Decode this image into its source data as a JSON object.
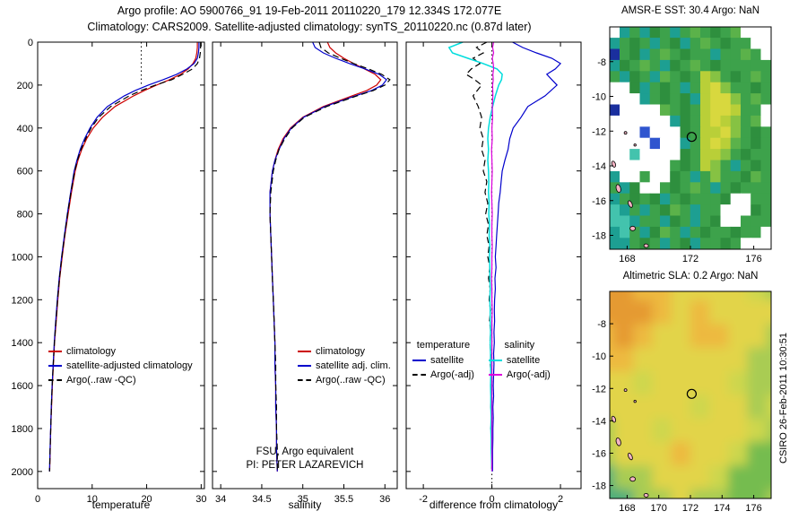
{
  "header": {
    "line1": "Argo profile: AO 5900766_91 19-Feb-2011 20110220_179 12.334S 172.077E",
    "line2": "Climatology: CARS2009. Satellite-adjusted climatology: synTS_20110220.nc (0.87d later)"
  },
  "notes": {
    "line1": "FSU, Argo equivalent",
    "line2": "PI: PETER LAZAREVICH"
  },
  "credit": {
    "text": "CSIRO 26-Feb-2011 10:30:51"
  },
  "colors": {
    "climatology": "#cc0000",
    "satellite": "#0000cc",
    "argo": "#000000",
    "sal_satellite": "#00dddd",
    "sal_argo": "#dd00dd",
    "frame": "#000000"
  },
  "chart_data": [
    {
      "type": "line",
      "panel": "temperature",
      "xlabel": "temperature",
      "ylabel": "",
      "xlim": [
        0,
        30.6
      ],
      "ylim": [
        0,
        2080
      ],
      "x_ticks": [
        0,
        10,
        20,
        30
      ],
      "y_ticks": [
        0,
        200,
        400,
        600,
        800,
        1000,
        1200,
        1400,
        1600,
        1800,
        2000
      ],
      "guide_line": {
        "x": 19,
        "depth_from": 0,
        "depth_to": 195
      },
      "depths": [
        0,
        25,
        50,
        75,
        100,
        125,
        150,
        175,
        200,
        225,
        250,
        300,
        350,
        400,
        450,
        500,
        550,
        600,
        700,
        800,
        900,
        1000,
        1100,
        1200,
        1300,
        1400,
        1500,
        1600,
        1700,
        1800,
        1900,
        2000
      ],
      "series": [
        {
          "name": "climatology",
          "color_key": "climatology",
          "dash": false,
          "values": [
            29.3,
            29.3,
            29.2,
            29.0,
            28.5,
            27.6,
            26.2,
            24.2,
            21.8,
            19.6,
            17.6,
            14.2,
            11.9,
            10.2,
            9.0,
            8.1,
            7.4,
            6.9,
            6.2,
            5.6,
            5.0,
            4.5,
            4.05,
            3.7,
            3.4,
            3.1,
            2.9,
            2.7,
            2.55,
            2.4,
            2.3,
            2.2
          ]
        },
        {
          "name": "satellite-adjusted climatology",
          "color_key": "satellite",
          "dash": false,
          "values": [
            29.6,
            29.6,
            29.5,
            29.3,
            28.7,
            27.4,
            25.5,
            23.0,
            20.3,
            17.9,
            15.9,
            12.8,
            10.9,
            9.6,
            8.6,
            7.8,
            7.2,
            6.7,
            6.05,
            5.45,
            4.9,
            4.4,
            3.95,
            3.6,
            3.3,
            3.05,
            2.85,
            2.65,
            2.5,
            2.38,
            2.27,
            2.17
          ]
        },
        {
          "name": "Argo(..raw -QC)",
          "color_key": "argo",
          "dash": true,
          "values": [
            29.9,
            29.9,
            29.85,
            29.7,
            29.3,
            28.4,
            26.6,
            24.6,
            21.6,
            19.0,
            16.8,
            13.4,
            11.2,
            9.8,
            8.8,
            7.95,
            7.3,
            6.8,
            6.1,
            5.5,
            4.95,
            4.45,
            4.0,
            3.65,
            3.35,
            3.08,
            2.87,
            2.67,
            2.52,
            2.4,
            2.28,
            2.18
          ]
        }
      ]
    },
    {
      "type": "line",
      "panel": "salinity",
      "xlabel": "salinity",
      "ylabel": "",
      "xlim": [
        33.9,
        36.15
      ],
      "ylim": [
        0,
        2080
      ],
      "x_ticks": [
        34,
        34.5,
        35,
        35.5,
        36
      ],
      "y_ticks": [
        0,
        200,
        400,
        600,
        800,
        1000,
        1200,
        1400,
        1600,
        1800,
        2000
      ],
      "depths": [
        0,
        25,
        50,
        75,
        100,
        125,
        150,
        175,
        200,
        225,
        250,
        300,
        350,
        400,
        450,
        500,
        550,
        600,
        700,
        800,
        900,
        1000,
        1100,
        1200,
        1300,
        1400,
        1500,
        1600,
        1700,
        1800,
        1900,
        2000
      ],
      "series": [
        {
          "name": "climatology",
          "color_key": "climatology",
          "dash": false,
          "values": [
            35.3,
            35.33,
            35.4,
            35.5,
            35.62,
            35.75,
            35.88,
            35.95,
            35.9,
            35.78,
            35.6,
            35.25,
            35.0,
            34.85,
            34.76,
            34.7,
            34.66,
            34.63,
            34.6,
            34.6,
            34.61,
            34.62,
            34.63,
            34.64,
            34.65,
            34.66,
            34.66,
            34.67,
            34.67,
            34.68,
            34.68,
            34.69
          ]
        },
        {
          "name": "satellite adj. clim.",
          "color_key": "satellite",
          "dash": false,
          "values": [
            35.12,
            35.15,
            35.25,
            35.4,
            35.57,
            35.76,
            35.93,
            36.02,
            35.97,
            35.84,
            35.64,
            35.27,
            35.01,
            34.86,
            34.77,
            34.71,
            34.66,
            34.63,
            34.6,
            34.6,
            34.61,
            34.62,
            34.63,
            34.64,
            34.65,
            34.66,
            34.66,
            34.67,
            34.67,
            34.68,
            34.68,
            34.69
          ]
        },
        {
          "name": "Argo(..raw -QC)",
          "color_key": "argo",
          "dash": true,
          "values": [
            35.2,
            35.22,
            35.31,
            35.46,
            35.62,
            35.8,
            35.96,
            36.06,
            36.0,
            35.86,
            35.66,
            35.29,
            35.02,
            34.87,
            34.78,
            34.71,
            34.67,
            34.64,
            34.61,
            34.6,
            34.61,
            34.62,
            34.63,
            34.64,
            34.65,
            34.66,
            34.67,
            34.67,
            34.68,
            34.68,
            34.69,
            34.69
          ]
        }
      ]
    },
    {
      "type": "line",
      "panel": "difference",
      "xlabel": "difference from climatology",
      "ylabel": "",
      "xlim": [
        -2.5,
        2.6
      ],
      "ylim": [
        0,
        2080
      ],
      "x_ticks": [
        -2,
        0,
        2
      ],
      "y_ticks": [
        0,
        200,
        400,
        600,
        800,
        1000,
        1200,
        1400,
        1600,
        1800,
        2000
      ],
      "guide_line": {
        "x": 0,
        "depth_from": 0,
        "depth_to": 2080
      },
      "legend_headers": [
        "temperature",
        "salinity"
      ],
      "depths": [
        0,
        25,
        50,
        75,
        100,
        125,
        150,
        175,
        200,
        250,
        300,
        350,
        400,
        450,
        500,
        550,
        600,
        650,
        700,
        750,
        800,
        850,
        900,
        950,
        1000,
        1050,
        1100,
        1150,
        1200,
        1250,
        1300,
        1350,
        1400,
        1450,
        1500,
        1550,
        1600,
        1650,
        1700,
        1750,
        1800,
        1850,
        1900,
        1950,
        2000
      ],
      "series": [
        {
          "name": "satellite",
          "color_key": "satellite",
          "dash": false,
          "values": [
            0.6,
            0.9,
            1.3,
            1.75,
            2.0,
            1.85,
            1.6,
            1.75,
            1.9,
            1.55,
            1.05,
            0.85,
            0.62,
            0.52,
            0.47,
            0.38,
            0.3,
            0.27,
            0.24,
            0.2,
            0.18,
            0.16,
            0.14,
            0.12,
            0.1,
            0.12,
            0.09,
            0.1,
            0.08,
            0.07,
            0.08,
            0.06,
            0.07,
            0.05,
            0.06,
            0.05,
            0.04,
            0.05,
            0.03,
            0.04,
            0.03,
            0.03,
            0.02,
            0.02,
            0.02
          ]
        },
        {
          "name": "Argo(-adj)",
          "color_key": "argo",
          "dash": true,
          "values": [
            -0.15,
            -0.45,
            -0.25,
            -0.55,
            -0.35,
            -0.6,
            -0.75,
            -0.5,
            -0.3,
            -0.55,
            -0.4,
            -0.3,
            -0.35,
            -0.25,
            -0.3,
            -0.2,
            -0.25,
            -0.15,
            -0.2,
            -0.12,
            -0.18,
            -0.1,
            -0.15,
            -0.08,
            -0.12,
            -0.06,
            -0.1,
            -0.05,
            -0.08,
            -0.04,
            -0.07,
            -0.03,
            -0.06,
            -0.03,
            -0.05,
            -0.02,
            -0.04,
            -0.02,
            -0.03,
            -0.01,
            -0.03,
            -0.01,
            -0.02,
            0.0,
            -0.01
          ]
        },
        {
          "name": "satellite",
          "color_key": "sal_satellite",
          "dash": false,
          "values": [
            -0.85,
            -1.25,
            -1.15,
            -0.7,
            -0.25,
            0.15,
            0.3,
            0.28,
            0.2,
            0.1,
            0.02,
            -0.05,
            -0.1,
            -0.12,
            -0.1,
            -0.12,
            -0.1,
            -0.09,
            -0.1,
            -0.08,
            -0.09,
            -0.07,
            -0.08,
            -0.06,
            -0.07,
            -0.06,
            -0.06,
            -0.05,
            -0.06,
            -0.05,
            -0.05,
            -0.04,
            -0.05,
            -0.04,
            -0.04,
            -0.03,
            -0.04,
            -0.03,
            -0.03,
            -0.02,
            -0.03,
            -0.02,
            -0.02,
            -0.01,
            0.0
          ]
        },
        {
          "name": "Argo(-adj)",
          "color_key": "sal_argo",
          "dash": false,
          "values": [
            0.05,
            0.02,
            0.05,
            0.01,
            0.04,
            0.05,
            0.03,
            0.04,
            0.02,
            0.03,
            0.01,
            0.02,
            0.0,
            0.01,
            -0.01,
            0.0,
            0.01,
            0.0,
            -0.01,
            0.0,
            0.01,
            0.0,
            0.0,
            0.01,
            0.0,
            0.0,
            -0.01,
            0.0,
            0.0,
            0.01,
            0.0,
            0.0,
            0.0,
            0.0,
            0.0,
            0.0,
            0.0,
            0.0,
            0.0,
            0.0,
            0.0,
            0.0,
            0.0,
            0.0,
            0.0
          ]
        }
      ]
    }
  ],
  "maps": {
    "sst": {
      "title": "AMSR-E SST: 30.4 Argo: NaN",
      "x_ticks": [
        168,
        172,
        176
      ],
      "y_ticks": [
        -8,
        -10,
        -12,
        -14,
        -16,
        -18
      ],
      "lon_range": [
        166.9,
        177.1
      ],
      "lat_range": [
        -6.0,
        -18.8
      ],
      "smooth": false,
      "land_color": "#f2b2c2",
      "argo": {
        "lon": 172.077,
        "lat": -12.334
      },
      "palette": {
        "w": "#ffffff",
        "g": "#3da24b",
        "d": "#2e8f3e",
        "e": "#5bb24a",
        "f": "#86c243",
        "y": "#b9cf38",
        "o": "#d8d83e",
        "t": "#1d9f92",
        "c": "#43c3ad",
        "b": "#2f55cf",
        "n": "#1a2f9e"
      },
      "grid": [
        "wtgtdgtgegdgewww",
        "tgdgtgdtgegdggww",
        "ngdtgegdggtggegw",
        "tdgegtdgegdggggg",
        "gtdgtegdgyfgdgeg",
        "wwdtgdgtgyofggdg",
        "wwwtgdgdtyoofgeg",
        "nwwwwegdgyooyggw",
        "wwwwwwtdgyoyfgew",
        "wwwbwwwdgyyofgdg",
        "wwwwbwwtgyoyegdg",
        "wwcwwwwdgyyfgdgg",
        "wwwwwwgdgyfgtgdg",
        "twwgwwdgtgfggdeg",
        "gtdwwgdgegtgdggg",
        "tgdgdtgdgggdwwgg",
        "ctgtgdegtggwwwdg",
        "cctggtdgtgdwwggg",
        "tcgtdegtgdggdggw",
        "ttgdgtgdtggdgwww"
      ],
      "islands": [
        {
          "lon": 167.9,
          "lat": -12.1,
          "w": 3,
          "h": 3,
          "rot": 0
        },
        {
          "lon": 168.5,
          "lat": -12.8,
          "w": 2.5,
          "h": 2.5,
          "rot": 0
        },
        {
          "lon": 167.15,
          "lat": -13.9,
          "w": 4,
          "h": 7,
          "rot": -20
        },
        {
          "lon": 167.45,
          "lat": -15.3,
          "w": 5,
          "h": 9,
          "rot": -15
        },
        {
          "lon": 168.2,
          "lat": -16.2,
          "w": 4,
          "h": 8,
          "rot": -25
        },
        {
          "lon": 168.35,
          "lat": -17.6,
          "w": 6,
          "h": 5,
          "rot": 0
        },
        {
          "lon": 169.2,
          "lat": -18.6,
          "w": 5,
          "h": 4,
          "rot": 10
        }
      ]
    },
    "sla": {
      "title": "Altimetric SLA: 0.2 Argo: NaN",
      "x_ticks": [
        168,
        170,
        172,
        174,
        176
      ],
      "y_ticks": [
        -8,
        -10,
        -12,
        -14,
        -16,
        -18
      ],
      "lon_range": [
        166.9,
        177.1
      ],
      "lat_range": [
        -6.0,
        -18.8
      ],
      "smooth": true,
      "land_color": "#f2b2c2",
      "argo": {
        "lon": 172.077,
        "lat": -12.334
      },
      "palette": {
        "O": "#e59a33",
        "p": "#edb93f",
        "y": "#e2d44a",
        "l": "#cdd74d",
        "g": "#a9cc52",
        "G": "#74bc4f",
        "t": "#4fae7c"
      },
      "grid": [
        "OOppyyyylg",
        "OOOpypyyyy",
        "pOpyyppyyg",
        "ppyyyyyygg",
        "yylyyyylgg",
        "yyyyylyygl",
        "gyylyyyylg",
        "gyyypyylGG",
        "tggyyylGGG",
        "ttggyggGGg"
      ],
      "islands": [
        {
          "lon": 167.9,
          "lat": -12.1,
          "w": 3,
          "h": 3,
          "rot": 0
        },
        {
          "lon": 168.5,
          "lat": -12.8,
          "w": 2.5,
          "h": 2.5,
          "rot": 0
        },
        {
          "lon": 167.15,
          "lat": -13.9,
          "w": 4,
          "h": 7,
          "rot": -20
        },
        {
          "lon": 167.45,
          "lat": -15.3,
          "w": 5,
          "h": 9,
          "rot": -15
        },
        {
          "lon": 168.2,
          "lat": -16.2,
          "w": 4,
          "h": 8,
          "rot": -25
        },
        {
          "lon": 168.35,
          "lat": -17.6,
          "w": 6,
          "h": 5,
          "rot": 0
        },
        {
          "lon": 169.2,
          "lat": -18.6,
          "w": 5,
          "h": 4,
          "rot": 10
        }
      ]
    }
  }
}
